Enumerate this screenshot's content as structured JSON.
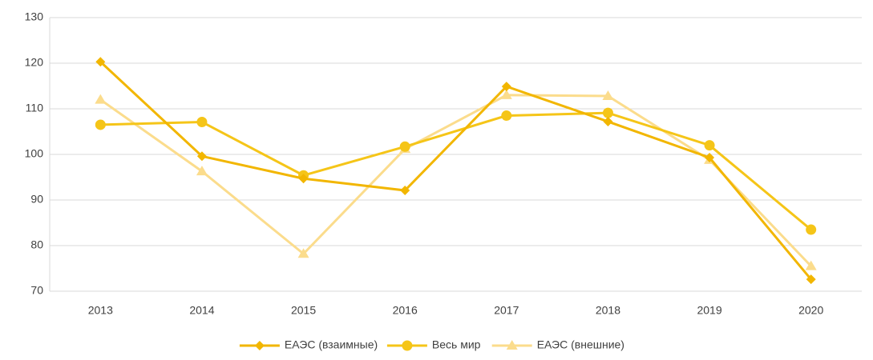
{
  "chart_data": {
    "type": "line",
    "categories": [
      "2013",
      "2014",
      "2015",
      "2016",
      "2017",
      "2018",
      "2019",
      "2020"
    ],
    "series": [
      {
        "name": "ЕАЭС (взаимные)",
        "color": "#f2b600",
        "marker": "diamond",
        "values": [
          120.3,
          99.6,
          94.7,
          92.1,
          114.9,
          107.2,
          99.3,
          72.6
        ]
      },
      {
        "name": "Весь мир",
        "color": "#f5c518",
        "marker": "circle",
        "values": [
          106.5,
          107.1,
          95.4,
          101.7,
          108.5,
          109.1,
          102.0,
          83.5
        ]
      },
      {
        "name": "ЕАЭС (внешние)",
        "color": "#fbdc8c",
        "marker": "triangle",
        "values": [
          112.0,
          96.3,
          78.2,
          101.2,
          113.0,
          112.8,
          98.8,
          75.5
        ]
      }
    ],
    "ylim": [
      70,
      130
    ],
    "yticks": [
      70,
      80,
      90,
      100,
      110,
      120,
      130
    ],
    "grid": true,
    "legend": "bottom"
  }
}
